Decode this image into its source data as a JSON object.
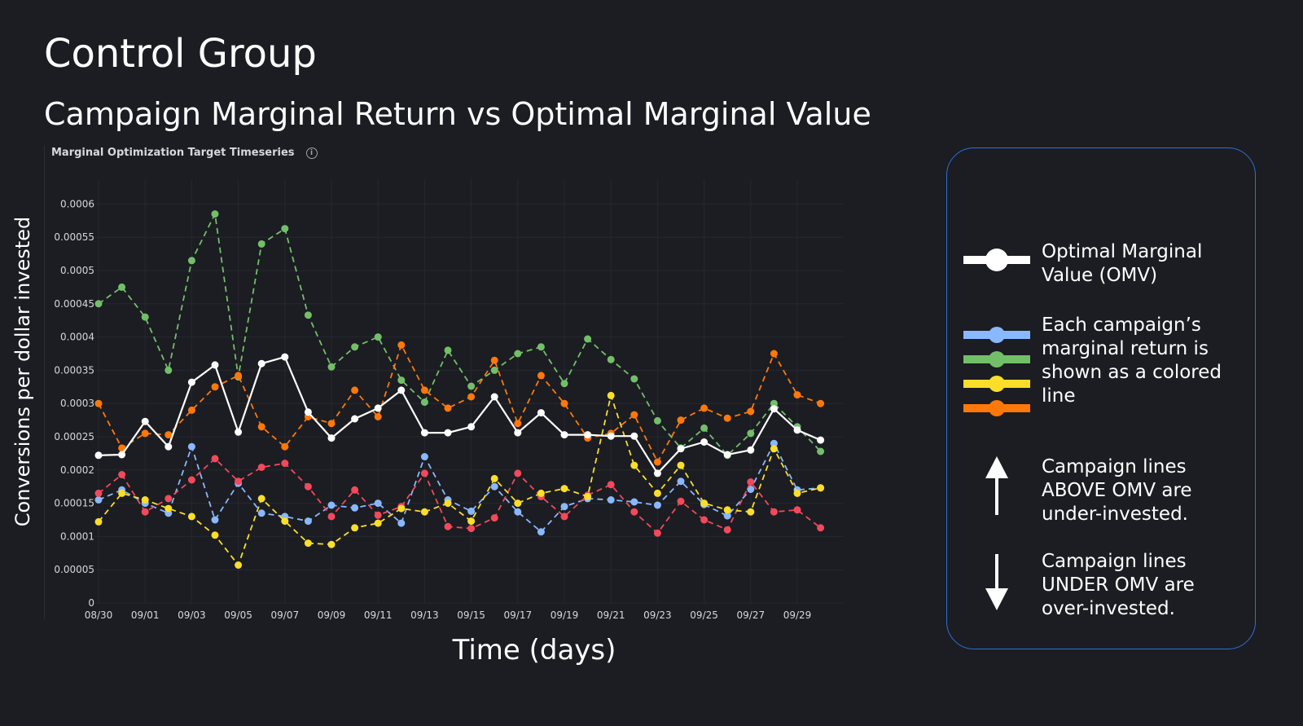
{
  "page": {
    "title": "Control Group",
    "subtitle": "Campaign Marginal Return vs Optimal Marginal Value"
  },
  "panel": {
    "title": "Marginal Optimization Target Timeseries",
    "info_icon": "info-icon"
  },
  "axes": {
    "ylabel": "Conversions per dollar invested",
    "xlabel": "Time (days)"
  },
  "legend": {
    "omv": "Optimal Marginal Value (OMV)",
    "campaigns": "Each campaign’s marginal return is shown as a colored line",
    "above": "Campaign lines ABOVE OMV are under-invested.",
    "under": "Campaign lines UNDER OMV are over-invested.",
    "colors": {
      "omv": "#ffffff",
      "blue": "#8ab8ff",
      "green": "#73bf69",
      "yellow": "#fade2a",
      "orange": "#ff780a"
    },
    "accent_border": "#2f6fd6"
  },
  "chart_data": {
    "type": "line",
    "x": [
      "08/30",
      "08/31",
      "09/01",
      "09/02",
      "09/03",
      "09/04",
      "09/05",
      "09/06",
      "09/07",
      "09/08",
      "09/09",
      "09/10",
      "09/11",
      "09/12",
      "09/13",
      "09/14",
      "09/15",
      "09/16",
      "09/17",
      "09/18",
      "09/19",
      "09/20",
      "09/21",
      "09/22",
      "09/23",
      "09/24",
      "09/25",
      "09/26",
      "09/27",
      "09/28",
      "09/29",
      "09/30"
    ],
    "xticks": [
      "08/30",
      "09/01",
      "09/03",
      "09/05",
      "09/07",
      "09/09",
      "09/11",
      "09/13",
      "09/15",
      "09/17",
      "09/19",
      "09/21",
      "09/23",
      "09/25",
      "09/27",
      "09/29"
    ],
    "yticks": [
      "0",
      "0.00005",
      "0.0001",
      "0.00015",
      "0.0002",
      "0.00025",
      "0.0003",
      "0.00035",
      "0.0004",
      "0.00045",
      "0.0005",
      "0.00055",
      "0.0006"
    ],
    "ylim": [
      0,
      0.00062
    ],
    "grid": true,
    "series": [
      {
        "color": "#73bf69",
        "dashed": true,
        "values": [
          0.00045,
          0.000475,
          0.00043,
          0.00035,
          0.000515,
          0.000585,
          0.00034,
          0.00054,
          0.000563,
          0.000433,
          0.000355,
          0.000385,
          0.0004,
          0.000335,
          0.000302,
          0.00038,
          0.000326,
          0.00035,
          0.000375,
          0.000385,
          0.00033,
          0.000397,
          0.000366,
          0.000337,
          0.000274,
          0.000233,
          0.000263,
          0.000222,
          0.000255,
          0.0003,
          0.000265,
          0.000228
        ]
      },
      {
        "color": "#ff780a",
        "dashed": true,
        "values": [
          0.0003,
          0.000233,
          0.000255,
          0.000253,
          0.00029,
          0.000325,
          0.000342,
          0.000265,
          0.000235,
          0.00028,
          0.00027,
          0.00032,
          0.00028,
          0.000388,
          0.00032,
          0.000293,
          0.00031,
          0.000365,
          0.00027,
          0.000342,
          0.0003,
          0.000248,
          0.000255,
          0.000283,
          0.000212,
          0.000275,
          0.000293,
          0.000278,
          0.000288,
          0.000375,
          0.000313,
          0.0003
        ]
      },
      {
        "color": "#8ab8ff",
        "dashed": true,
        "values": [
          0.000155,
          0.00017,
          0.00015,
          0.000135,
          0.000235,
          0.000125,
          0.00018,
          0.000135,
          0.00013,
          0.000123,
          0.000147,
          0.000143,
          0.00015,
          0.00012,
          0.00022,
          0.000155,
          0.000138,
          0.000175,
          0.000137,
          0.000107,
          0.000145,
          0.000157,
          0.000155,
          0.000152,
          0.000147,
          0.000183,
          0.000148,
          0.000131,
          0.000171,
          0.00024,
          0.00017,
          0.000173
        ]
      },
      {
        "color": "#f2495c",
        "dashed": true,
        "values": [
          0.000165,
          0.000193,
          0.000137,
          0.000157,
          0.000185,
          0.000217,
          0.000183,
          0.000204,
          0.00021,
          0.000175,
          0.00013,
          0.00017,
          0.000132,
          0.000145,
          0.000195,
          0.000115,
          0.000112,
          0.000128,
          0.000195,
          0.00016,
          0.00013,
          0.000162,
          0.000178,
          0.000137,
          0.000105,
          0.000153,
          0.000125,
          0.00011,
          0.000182,
          0.000137,
          0.00014,
          0.000113
        ]
      },
      {
        "color": "#fade2a",
        "dashed": true,
        "values": [
          0.000122,
          0.000165,
          0.000155,
          0.000142,
          0.00013,
          0.000102,
          5.7e-05,
          0.000157,
          0.000123,
          9e-05,
          8.8e-05,
          0.000113,
          0.00012,
          0.000142,
          0.000137,
          0.00015,
          0.000123,
          0.000187,
          0.00015,
          0.000165,
          0.000172,
          0.00016,
          0.000312,
          0.000207,
          0.000165,
          0.000207,
          0.00015,
          0.00014,
          0.000137,
          0.000232,
          0.000165,
          0.000173
        ]
      },
      {
        "color": "#ffffff",
        "dashed": false,
        "values": [
          0.000222,
          0.000223,
          0.000273,
          0.000235,
          0.000332,
          0.000358,
          0.000257,
          0.00036,
          0.00037,
          0.000287,
          0.000248,
          0.000277,
          0.000293,
          0.00032,
          0.000256,
          0.000256,
          0.000265,
          0.00031,
          0.000256,
          0.000286,
          0.000253,
          0.000253,
          0.000251,
          0.000251,
          0.000195,
          0.000232,
          0.000242,
          0.000223,
          0.00023,
          0.000292,
          0.00026,
          0.000245
        ]
      }
    ]
  }
}
